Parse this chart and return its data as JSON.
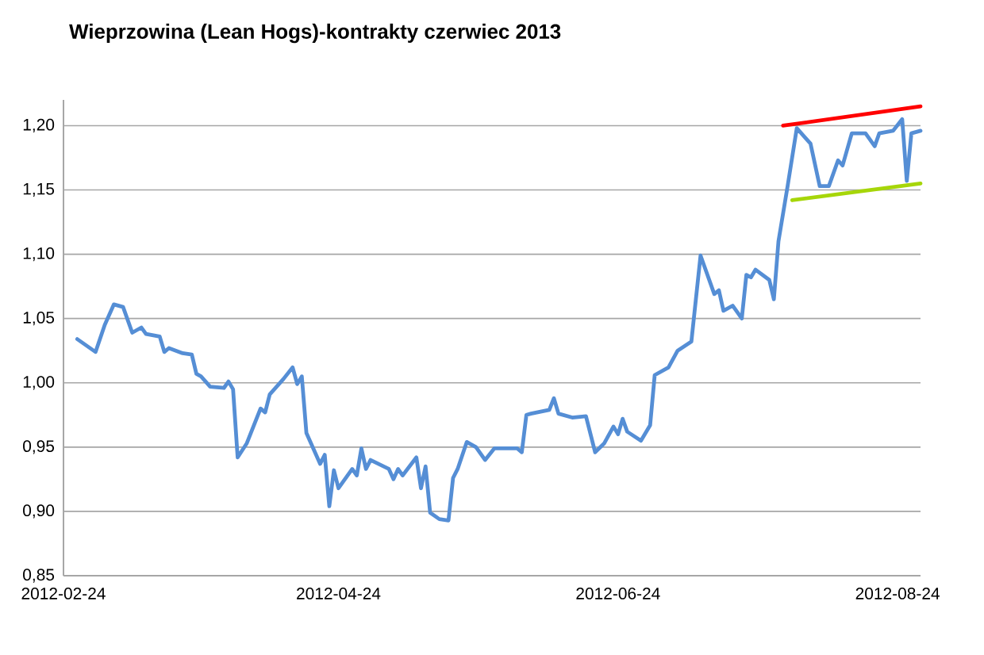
{
  "chart_data": {
    "type": "line",
    "title": "Wieprzowina (Lean Hogs)-kontrakty czerwiec 2013",
    "xlim": [
      "2012-02-24",
      "2012-08-29"
    ],
    "ylim": [
      0.85,
      1.22
    ],
    "xticks": [
      {
        "value": "2012-02-24",
        "label": "2012-02-24"
      },
      {
        "value": "2012-04-24",
        "label": "2012-04-24"
      },
      {
        "value": "2012-06-24",
        "label": "2012-06-24"
      },
      {
        "value": "2012-08-24",
        "label": "2012-08-24"
      }
    ],
    "yticks": [
      {
        "value": 0.85,
        "label": "0,85"
      },
      {
        "value": 0.9,
        "label": "0,90"
      },
      {
        "value": 0.95,
        "label": "0,95"
      },
      {
        "value": 1.0,
        "label": "1,00"
      },
      {
        "value": 1.05,
        "label": "1,05"
      },
      {
        "value": 1.1,
        "label": "1,10"
      },
      {
        "value": 1.15,
        "label": "1,15"
      },
      {
        "value": 1.2,
        "label": "1,20"
      }
    ],
    "grid": "y",
    "marker": "none",
    "line_style": "solid",
    "series": [
      {
        "color": "#558ed5",
        "x": [
          "2012-02-27",
          "2012-03-02",
          "2012-03-04",
          "2012-03-06",
          "2012-03-08",
          "2012-03-10",
          "2012-03-12",
          "2012-03-13",
          "2012-03-16",
          "2012-03-17",
          "2012-03-18",
          "2012-03-21",
          "2012-03-23",
          "2012-03-24",
          "2012-03-25",
          "2012-03-27",
          "2012-03-30",
          "2012-03-31",
          "2012-04-01",
          "2012-04-02",
          "2012-04-04",
          "2012-04-07",
          "2012-04-08",
          "2012-04-09",
          "2012-04-12",
          "2012-04-14",
          "2012-04-15",
          "2012-04-16",
          "2012-04-17",
          "2012-04-20",
          "2012-04-21",
          "2012-04-22",
          "2012-04-23",
          "2012-04-24",
          "2012-04-27",
          "2012-04-28",
          "2012-04-29",
          "2012-04-30",
          "2012-05-01",
          "2012-05-05",
          "2012-05-06",
          "2012-05-07",
          "2012-05-08",
          "2012-05-11",
          "2012-05-12",
          "2012-05-13",
          "2012-05-14",
          "2012-05-16",
          "2012-05-18",
          "2012-05-19",
          "2012-05-20",
          "2012-05-22",
          "2012-05-24",
          "2012-05-26",
          "2012-05-28",
          "2012-06-02",
          "2012-06-03",
          "2012-06-04",
          "2012-06-05",
          "2012-06-09",
          "2012-06-10",
          "2012-06-11",
          "2012-06-14",
          "2012-06-17",
          "2012-06-19",
          "2012-06-21",
          "2012-06-23",
          "2012-06-24",
          "2012-06-25",
          "2012-06-26",
          "2012-06-29",
          "2012-07-01",
          "2012-07-02",
          "2012-07-05",
          "2012-07-07",
          "2012-07-10",
          "2012-07-12",
          "2012-07-15",
          "2012-07-16",
          "2012-07-17",
          "2012-07-19",
          "2012-07-21",
          "2012-07-22",
          "2012-07-23",
          "2012-07-24",
          "2012-07-27",
          "2012-07-28",
          "2012-07-29",
          "2012-07-31",
          "2012-08-02",
          "2012-08-05",
          "2012-08-07",
          "2012-08-09",
          "2012-08-11",
          "2012-08-12",
          "2012-08-14",
          "2012-08-17",
          "2012-08-19",
          "2012-08-20",
          "2012-08-23",
          "2012-08-25",
          "2012-08-26",
          "2012-08-27",
          "2012-08-29"
        ],
        "values": [
          1.034,
          1.024,
          1.045,
          1.061,
          1.059,
          1.039,
          1.043,
          1.038,
          1.036,
          1.024,
          1.027,
          1.023,
          1.022,
          1.007,
          1.005,
          0.997,
          0.996,
          1.001,
          0.995,
          0.942,
          0.953,
          0.98,
          0.977,
          0.991,
          1.003,
          1.012,
          0.999,
          1.005,
          0.961,
          0.937,
          0.944,
          0.904,
          0.932,
          0.918,
          0.933,
          0.928,
          0.949,
          0.933,
          0.94,
          0.933,
          0.925,
          0.933,
          0.928,
          0.942,
          0.918,
          0.935,
          0.899,
          0.894,
          0.893,
          0.926,
          0.933,
          0.954,
          0.95,
          0.94,
          0.949,
          0.949,
          0.946,
          0.975,
          0.976,
          0.979,
          0.988,
          0.976,
          0.973,
          0.974,
          0.946,
          0.953,
          0.966,
          0.96,
          0.972,
          0.962,
          0.955,
          0.967,
          1.006,
          1.012,
          1.025,
          1.032,
          1.099,
          1.069,
          1.072,
          1.056,
          1.06,
          1.05,
          1.084,
          1.082,
          1.088,
          1.08,
          1.065,
          1.11,
          1.153,
          1.198,
          1.186,
          1.153,
          1.153,
          1.173,
          1.169,
          1.194,
          1.194,
          1.184,
          1.194,
          1.196,
          1.205,
          1.157,
          1.194,
          1.196
        ]
      },
      {
        "color": "#ff0000",
        "x": [
          "2012-07-30",
          "2012-08-29"
        ],
        "values": [
          1.2,
          1.215
        ]
      },
      {
        "color": "#a6d609",
        "x": [
          "2012-08-01",
          "2012-08-29"
        ],
        "values": [
          1.142,
          1.155
        ]
      }
    ]
  }
}
